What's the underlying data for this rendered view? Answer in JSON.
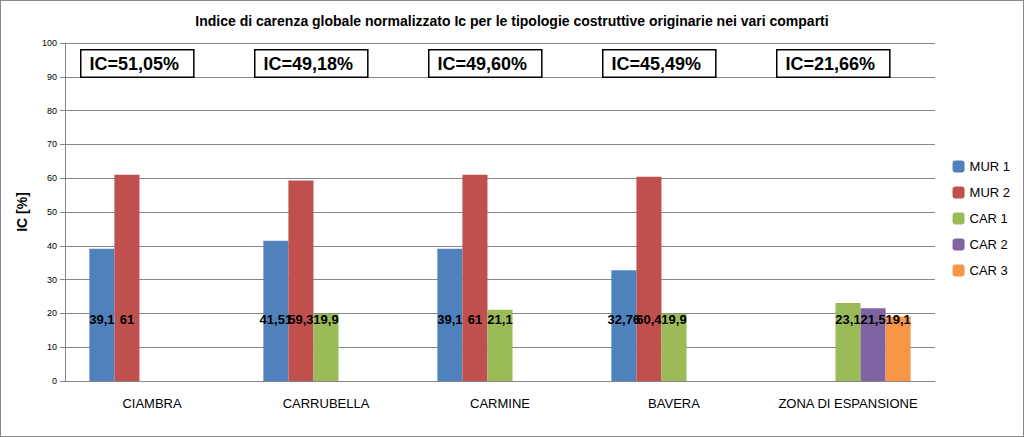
{
  "chart_data": {
    "type": "bar",
    "title": "Indice di carenza globale normalizzato Ic per le tipologie costruttive originarie nei vari comparti",
    "y_label": "IC [%]",
    "categories": [
      "CIAMBRA",
      "CARRUBELLA",
      "CARMINE",
      "BAVERA",
      "ZONA DI ESPANSIONE"
    ],
    "annotations": [
      "IC=51,05%",
      "IC=49,18%",
      "IC=49,60%",
      "IC=45,49%",
      "IC=21,66%"
    ],
    "series": [
      {
        "name": "MUR 1",
        "color": "#4f81bd",
        "values": [
          39.1,
          41.51,
          39.1,
          32.76,
          null
        ],
        "value_labels": [
          "39,1",
          "41,51",
          "39,1",
          "32,76",
          null
        ]
      },
      {
        "name": "MUR 2",
        "color": "#c0504d",
        "values": [
          61,
          59.3,
          61,
          60.4,
          null
        ],
        "value_labels": [
          "61",
          "59,3",
          "61",
          "60,4",
          null
        ]
      },
      {
        "name": "CAR 1",
        "color": "#9bbb59",
        "values": [
          null,
          19.9,
          21.1,
          19.9,
          23.1
        ],
        "value_labels": [
          null,
          "19,9",
          "21,1",
          "19,9",
          "23,1"
        ]
      },
      {
        "name": "CAR 2",
        "color": "#8064a2",
        "values": [
          null,
          null,
          null,
          null,
          21.5
        ],
        "value_labels": [
          null,
          null,
          null,
          null,
          "21,5"
        ]
      },
      {
        "name": "CAR 3",
        "color": "#f79646",
        "values": [
          null,
          null,
          null,
          null,
          19.1
        ],
        "value_labels": [
          null,
          null,
          null,
          null,
          "19,1"
        ]
      }
    ],
    "ylim": [
      0,
      100
    ],
    "yticks": [
      0,
      10,
      20,
      30,
      40,
      50,
      60,
      70,
      80,
      90,
      100
    ],
    "grid": true,
    "legend": "right",
    "data_labels": true
  }
}
